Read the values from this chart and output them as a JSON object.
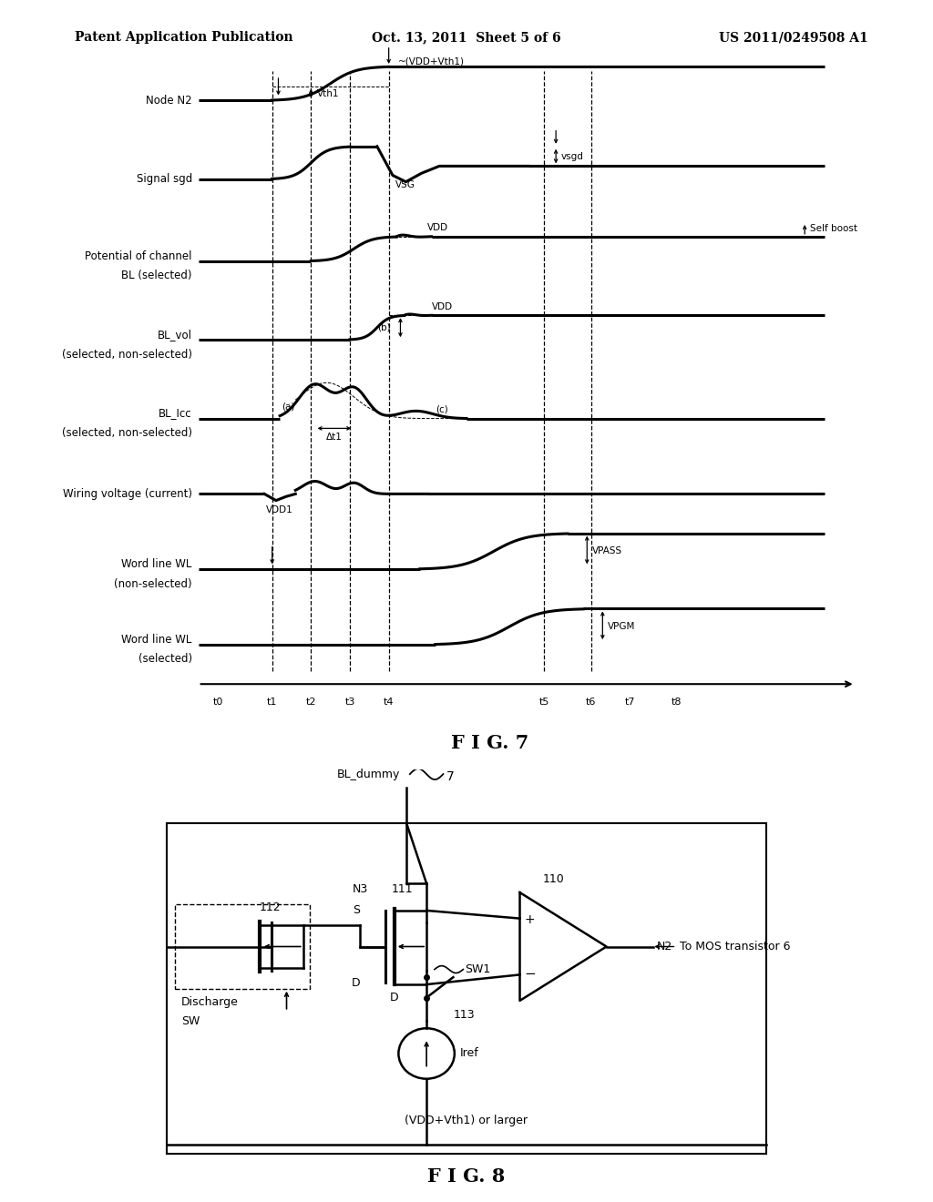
{
  "title_left": "Patent Application Publication",
  "title_center": "Oct. 13, 2011  Sheet 5 of 6",
  "title_right": "US 2011/0249508 A1",
  "fig7_label": "F I G. 7",
  "fig8_label": "F I G. 8",
  "bg_color": "#ffffff"
}
